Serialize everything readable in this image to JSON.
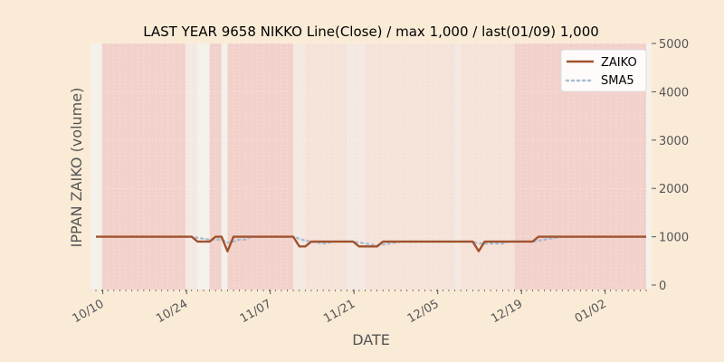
{
  "chart_data": {
    "type": "line",
    "title": "LAST YEAR 9658 NIKKO Line(Close) / max 1,000 / last(01/09) 1,000",
    "xlabel": "DATE",
    "ylabel": "IPPAN ZAIKO (volume)",
    "ylim": [
      0,
      5000
    ],
    "y_ticks": [
      0,
      1000,
      2000,
      3000,
      4000,
      5000
    ],
    "y_axis_side": "right",
    "x_ticks": [
      "10/10",
      "10/24",
      "11/07",
      "11/21",
      "12/05",
      "12/19",
      "01/02"
    ],
    "x": [
      "10/09",
      "10/10",
      "10/11",
      "10/12",
      "10/13",
      "10/14",
      "10/15",
      "10/16",
      "10/17",
      "10/18",
      "10/19",
      "10/20",
      "10/21",
      "10/22",
      "10/23",
      "10/24",
      "10/25",
      "10/26",
      "10/27",
      "10/28",
      "10/29",
      "10/30",
      "10/31",
      "11/01",
      "11/02",
      "11/03",
      "11/04",
      "11/05",
      "11/06",
      "11/07",
      "11/08",
      "11/09",
      "11/10",
      "11/11",
      "11/12",
      "11/13",
      "11/14",
      "11/15",
      "11/16",
      "11/17",
      "11/18",
      "11/19",
      "11/20",
      "11/21",
      "11/22",
      "11/23",
      "11/24",
      "11/25",
      "11/26",
      "11/27",
      "11/28",
      "11/29",
      "11/30",
      "12/01",
      "12/02",
      "12/03",
      "12/04",
      "12/05",
      "12/06",
      "12/07",
      "12/08",
      "12/09",
      "12/10",
      "12/11",
      "12/12",
      "12/13",
      "12/14",
      "12/15",
      "12/16",
      "12/17",
      "12/18",
      "12/19",
      "12/20",
      "12/21",
      "12/22",
      "12/23",
      "12/24",
      "12/25",
      "12/26",
      "12/27",
      "12/28",
      "12/29",
      "12/30",
      "12/31",
      "01/01",
      "01/02",
      "01/03",
      "01/04",
      "01/05",
      "01/06",
      "01/07",
      "01/08",
      "01/09"
    ],
    "series": [
      {
        "name": "ZAIKO",
        "color": "#a0522d",
        "style": "solid",
        "values": [
          1000,
          1000,
          1000,
          1000,
          1000,
          1000,
          1000,
          1000,
          1000,
          1000,
          1000,
          1000,
          1000,
          1000,
          1000,
          1000,
          1000,
          900,
          900,
          900,
          1000,
          1000,
          700,
          1000,
          1000,
          1000,
          1000,
          1000,
          1000,
          1000,
          1000,
          1000,
          1000,
          1000,
          800,
          800,
          900,
          900,
          900,
          900,
          900,
          900,
          900,
          900,
          800,
          800,
          800,
          800,
          900,
          900,
          900,
          900,
          900,
          900,
          900,
          900,
          900,
          900,
          900,
          900,
          900,
          900,
          900,
          900,
          700,
          900,
          900,
          900,
          900,
          900,
          900,
          900,
          900,
          900,
          1000,
          1000,
          1000,
          1000,
          1000,
          1000,
          1000,
          1000,
          1000,
          1000,
          1000,
          1000,
          1000,
          1000,
          1000,
          1000,
          1000,
          1000,
          1000
        ]
      },
      {
        "name": "SMA5",
        "color": "#a9bcd0",
        "style": "dotted",
        "values": [
          null,
          null,
          null,
          null,
          1000,
          1000,
          1000,
          1000,
          1000,
          1000,
          1000,
          1000,
          1000,
          1000,
          1000,
          1000,
          1000,
          980,
          960,
          940,
          940,
          940,
          880,
          900,
          940,
          940,
          1000,
          1000,
          1000,
          1000,
          1000,
          1000,
          1000,
          1000,
          960,
          920,
          900,
          880,
          860,
          880,
          900,
          900,
          900,
          900,
          880,
          860,
          840,
          820,
          840,
          860,
          880,
          900,
          900,
          900,
          900,
          900,
          900,
          900,
          900,
          900,
          900,
          900,
          900,
          900,
          860,
          860,
          860,
          860,
          860,
          900,
          900,
          900,
          900,
          900,
          920,
          940,
          960,
          980,
          1000,
          1000,
          1000,
          1000,
          1000,
          1000,
          1000,
          1000,
          1000,
          1000,
          1000,
          1000,
          1000,
          1000,
          1000
        ]
      }
    ],
    "shaded_ranges": [
      {
        "from": "10/10",
        "to": "10/24",
        "color": "#f0b8b0",
        "opacity": 0.55
      },
      {
        "from": "10/24",
        "to": "10/26",
        "color": "#f3e4dc",
        "opacity": 0.6
      },
      {
        "from": "10/28",
        "to": "10/30",
        "color": "#f0b8b0",
        "opacity": 0.55
      },
      {
        "from": "10/31",
        "to": "11/11",
        "color": "#f0b8b0",
        "opacity": 0.55
      },
      {
        "from": "11/11",
        "to": "11/13",
        "color": "#f3e4dc",
        "opacity": 0.6
      },
      {
        "from": "11/13",
        "to": "11/20",
        "color": "#f5d8cc",
        "opacity": 0.6
      },
      {
        "from": "11/20",
        "to": "11/23",
        "color": "#f3e4dc",
        "opacity": 0.6
      },
      {
        "from": "11/23",
        "to": "12/08",
        "color": "#f5d8cc",
        "opacity": 0.6
      },
      {
        "from": "12/08",
        "to": "12/09",
        "color": "#f3e4dc",
        "opacity": 0.6
      },
      {
        "from": "12/09",
        "to": "12/18",
        "color": "#f5d8cc",
        "opacity": 0.6
      },
      {
        "from": "12/18",
        "to": "01/09",
        "color": "#f0b8b0",
        "opacity": 0.55
      }
    ],
    "grid": true,
    "legend_position": "top-right"
  }
}
